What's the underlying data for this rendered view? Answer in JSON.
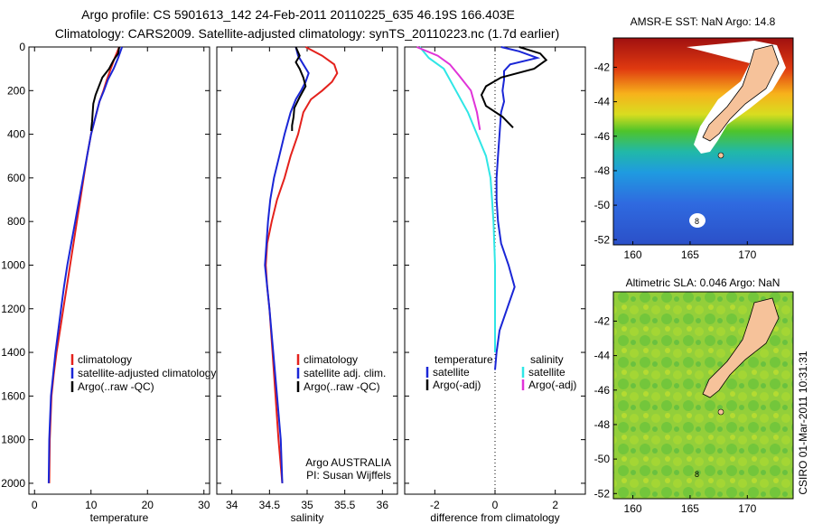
{
  "header": {
    "line1": "Argo profile: CS 5901613_142 24-Feb-2011 20110225_635 46.19S 166.403E",
    "line2": "Climatology: CARS2009. Satellite-adjusted climatology: synTS_20110223.nc (1.7d earlier)"
  },
  "side_note": "CSIRO 01-Mar-2011 10:31:31",
  "colors": {
    "red": "#e4211c",
    "blue": "#1a26d6",
    "black": "#000000",
    "cyan": "#2fe6e6",
    "magenta": "#e033d8"
  },
  "chart_data": [
    {
      "type": "line",
      "xlabel": "temperature",
      "xlim": [
        -1,
        31
      ],
      "ylim": [
        0,
        2050
      ],
      "xticks": [
        0,
        10,
        20,
        30
      ],
      "yticks": [
        0,
        200,
        400,
        600,
        800,
        1000,
        1200,
        1400,
        1600,
        1800,
        2000
      ],
      "legend": [
        "climatology",
        "satellite-adjusted climatology",
        "Argo(..raw -QC)"
      ],
      "series": [
        {
          "name": "climatology",
          "color": "red",
          "x": [
            15,
            14.2,
            13.5,
            12.8,
            12.2,
            11.5,
            11,
            10.5,
            10,
            9.3,
            8.7,
            8.1,
            7.5,
            6.9,
            6.3,
            5.7,
            5.1,
            4.5,
            3.9,
            3.4,
            3,
            2.7,
            2.6
          ],
          "y": [
            0,
            50,
            100,
            150,
            200,
            250,
            300,
            350,
            400,
            500,
            600,
            700,
            800,
            900,
            1000,
            1100,
            1200,
            1300,
            1400,
            1500,
            1600,
            1800,
            2000
          ]
        },
        {
          "name": "satellite-adjusted climatology",
          "color": "blue",
          "x": [
            15.5,
            14.8,
            14,
            13,
            12.3,
            11.5,
            11,
            10.5,
            10,
            9.3,
            8.6,
            7.9,
            7.2,
            6.5,
            5.8,
            5.2,
            4.7,
            4.2,
            3.7,
            3.3,
            2.9,
            2.6,
            2.5
          ],
          "y": [
            0,
            50,
            100,
            150,
            200,
            250,
            300,
            350,
            400,
            500,
            600,
            700,
            800,
            900,
            1000,
            1100,
            1200,
            1300,
            1400,
            1500,
            1600,
            1800,
            2000
          ]
        },
        {
          "name": "Argo(..raw -QC)",
          "color": "black",
          "x": [
            15,
            14.8,
            14,
            13.2,
            12,
            11.4,
            10.8,
            10.4,
            10.3,
            10.2,
            10
          ],
          "y": [
            0,
            30,
            60,
            100,
            140,
            180,
            220,
            260,
            300,
            340,
            385
          ]
        }
      ]
    },
    {
      "type": "line",
      "xlabel": "salinity",
      "xlim": [
        33.8,
        36.2
      ],
      "ylim": [
        0,
        2050
      ],
      "xticks": [
        34,
        34.5,
        35,
        35.5,
        36
      ],
      "legend": [
        "climatology",
        "satellite adj. clim.",
        "Argo(..raw -QC)"
      ],
      "annotations": [
        "Argo AUSTRALIA",
        "PI: Susan Wijffels"
      ],
      "series": [
        {
          "name": "climatology",
          "color": "red",
          "x": [
            34.98,
            35.2,
            35.36,
            35.4,
            35.33,
            35.2,
            35.05,
            34.95,
            34.88,
            34.78,
            34.7,
            34.6,
            34.53,
            34.47,
            34.45,
            34.47,
            34.5,
            34.54,
            34.58,
            34.62,
            34.67
          ],
          "y": [
            0,
            40,
            80,
            120,
            160,
            200,
            240,
            300,
            400,
            500,
            600,
            700,
            800,
            900,
            1000,
            1100,
            1200,
            1400,
            1600,
            1800,
            2000
          ]
        },
        {
          "name": "satellite adj. clim.",
          "color": "blue",
          "x": [
            34.85,
            34.88,
            34.95,
            35.02,
            34.98,
            34.92,
            34.85,
            34.78,
            34.7,
            34.63,
            34.56,
            34.51,
            34.48,
            34.46,
            34.44,
            34.47,
            34.5,
            34.55,
            34.6,
            34.65,
            34.67
          ],
          "y": [
            0,
            40,
            80,
            120,
            160,
            200,
            240,
            300,
            400,
            500,
            600,
            700,
            800,
            900,
            1000,
            1100,
            1200,
            1400,
            1600,
            1800,
            2000
          ]
        },
        {
          "name": "Argo(..raw -QC)",
          "color": "black",
          "x": [
            34.85,
            34.9,
            34.85,
            34.9,
            34.95,
            34.98,
            34.9,
            34.83,
            34.82,
            34.8,
            34.8
          ],
          "y": [
            0,
            40,
            70,
            100,
            140,
            180,
            230,
            280,
            320,
            360,
            385
          ]
        }
      ]
    },
    {
      "type": "line",
      "xlabel": "difference from climatology",
      "xlim": [
        -3,
        3
      ],
      "ylim": [
        0,
        2050
      ],
      "xticks": [
        -2,
        0,
        2
      ],
      "legend": [
        "temperature",
        "satellite",
        "Argo(-adj)",
        "salinity",
        "satellite",
        "Argo(-adj)"
      ],
      "series": [
        {
          "name": "satellite",
          "color": "blue",
          "x": [
            0.2,
            0.8,
            1.4,
            0.5,
            0.3,
            0.3,
            0.25,
            0.3,
            0.2,
            0.15,
            0.1,
            0.05,
            0.05,
            0.1,
            0.2,
            0.45,
            0.65,
            0.4,
            0.15,
            0.05,
            0
          ],
          "y": [
            0,
            20,
            50,
            80,
            110,
            150,
            200,
            250,
            300,
            400,
            500,
            600,
            700,
            800,
            900,
            1000,
            1100,
            1200,
            1300,
            1400,
            1480
          ]
        },
        {
          "name": "Argo(-adj)",
          "color": "black",
          "x": [
            0.8,
            1.5,
            1.7,
            1.3,
            0.2,
            -0.3,
            -0.45,
            -0.3,
            0.25,
            0.6
          ],
          "y": [
            0,
            30,
            60,
            100,
            140,
            180,
            220,
            270,
            320,
            370
          ]
        },
        {
          "name": "satellite",
          "color": "cyan",
          "x": [
            -2.5,
            -2.2,
            -1.7,
            -1.3,
            -0.9,
            -0.6,
            -0.3,
            -0.15,
            -0.1,
            -0.05,
            0,
            0,
            0
          ],
          "y": [
            0,
            50,
            100,
            200,
            300,
            400,
            500,
            600,
            700,
            800,
            1000,
            1200,
            1400
          ]
        },
        {
          "name": "Argo(-adj)",
          "color": "magenta",
          "x": [
            -2.6,
            -1.9,
            -1.5,
            -1.2,
            -0.8,
            -0.6,
            -0.5
          ],
          "y": [
            0,
            40,
            80,
            130,
            200,
            300,
            380
          ]
        }
      ]
    }
  ],
  "maps": [
    {
      "title": "AMSR-E SST: NaN Argo: 14.8",
      "xticks": [
        160,
        165,
        170
      ],
      "yticks": [
        -42,
        -44,
        -46,
        -48,
        -50,
        -52
      ],
      "kind": "sst"
    },
    {
      "title": "Altimetric SLA: 0.046 Argo: NaN",
      "xticks": [
        160,
        165,
        170
      ],
      "yticks": [
        -42,
        -44,
        -46,
        -48,
        -50,
        -52
      ],
      "kind": "sla"
    }
  ]
}
